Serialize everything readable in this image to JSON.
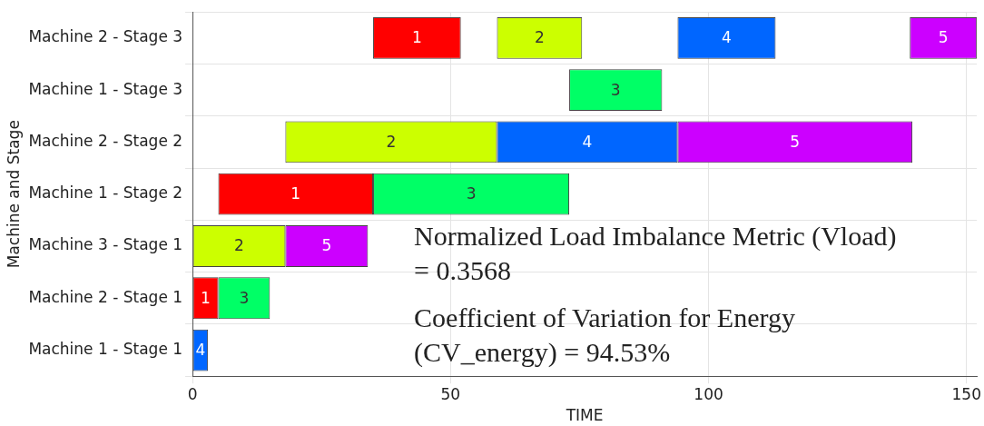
{
  "chart_data": {
    "type": "bar",
    "orientation": "horizontal",
    "xlabel": "TIME",
    "ylabel": "Machine and Stage",
    "categories": [
      "Machine 2 - Stage 3",
      "Machine 1 - Stage 3",
      "Machine 2 - Stage 2",
      "Machine 1 - Stage 2",
      "Machine 3 - Stage 1",
      "Machine 2 - Stage 1",
      "Machine 1 - Stage 1"
    ],
    "series": [
      {
        "name": "1",
        "color": "#ff0000",
        "base": [
          35,
          null,
          null,
          5,
          null,
          0,
          null
        ],
        "values": [
          17,
          null,
          null,
          30,
          null,
          5,
          null
        ]
      },
      {
        "name": "2",
        "color": "#ccff00",
        "base": [
          59,
          null,
          18,
          null,
          0,
          null,
          null
        ],
        "values": [
          16.5,
          null,
          41,
          null,
          18,
          null,
          null
        ]
      },
      {
        "name": "3",
        "color": "#00ff66",
        "base": [
          null,
          73,
          null,
          35,
          null,
          5,
          null
        ],
        "values": [
          null,
          18,
          null,
          38,
          null,
          10,
          null
        ]
      },
      {
        "name": "4",
        "color": "#0066ff",
        "base": [
          94,
          null,
          59,
          null,
          null,
          null,
          0
        ],
        "values": [
          19,
          null,
          35,
          null,
          null,
          null,
          3
        ]
      },
      {
        "name": "5",
        "color": "#cc00ff",
        "base": [
          139,
          null,
          94,
          null,
          18,
          null,
          null
        ],
        "values": [
          13,
          null,
          45.5,
          null,
          16,
          null,
          null
        ]
      }
    ],
    "xlim": [
      0,
      152
    ],
    "xticks": [
      0,
      50,
      100,
      150
    ],
    "grid": true,
    "legend": false,
    "annotations": [
      "Normalized Load Imbalance Metric (Vload) = 0.3568",
      "Coefficient of Variation for Energy (CV_energy) = 94.53%"
    ]
  }
}
